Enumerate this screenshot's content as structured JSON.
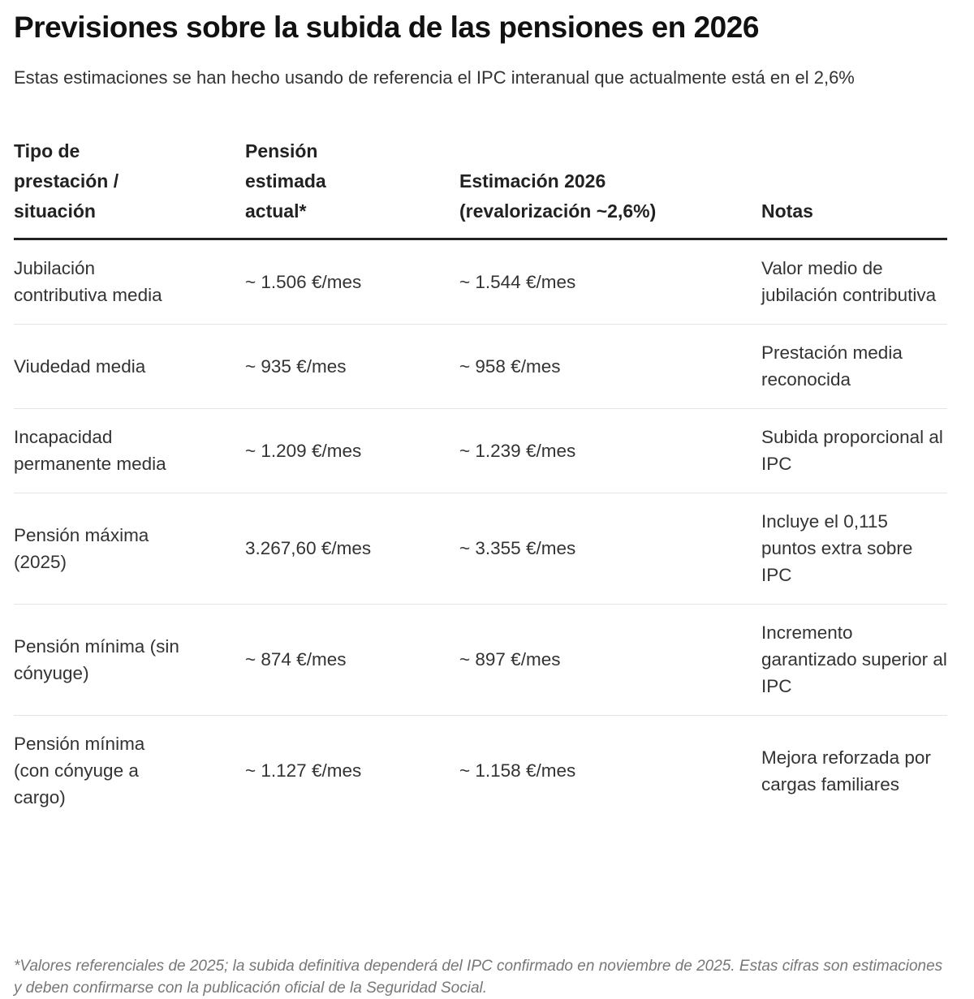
{
  "header": {
    "title": "Previsiones sobre la subida de las pensiones en 2026",
    "subtitle": "Estas estimaciones se han hecho usando de referencia el IPC interanual que actualmente está en el 2,6%"
  },
  "table": {
    "columns": [
      "Tipo de prestación / situación",
      "Pensión estimada actual*",
      "Estimación 2026 (revalorización ~2,6%)",
      "Notas"
    ],
    "rows": [
      [
        "Jubilación contributiva media",
        "~ 1.506 €/mes",
        "~ 1.544 €/mes",
        "Valor medio de jubilación contributiva"
      ],
      [
        "Viudedad media",
        "~ 935 €/mes",
        "~ 958 €/mes",
        "Prestación media reconocida"
      ],
      [
        "Incapacidad permanente media",
        "~ 1.209 €/mes",
        "~ 1.239 €/mes",
        "Subida proporcional al IPC"
      ],
      [
        "Pensión máxima (2025)",
        "3.267,60 €/mes",
        "~ 3.355 €/mes",
        "Incluye el 0,115 puntos extra sobre IPC"
      ],
      [
        "Pensión mínima (sin cónyuge)",
        "~ 874 €/mes",
        "~ 897 €/mes",
        "Incremento garantizado superior al IPC"
      ],
      [
        "Pensión mínima (con cónyuge a cargo)",
        "~ 1.127 €/mes",
        "~ 1.158 €/mes",
        "Mejora reforzada por cargas familiares"
      ]
    ]
  },
  "footer": {
    "note": "*Valores referenciales de 2025; la subida definitiva dependerá del IPC confirmado en noviembre de 2025. Estas cifras son estimaciones y deben confirmarse con la publicación oficial de la Seguridad Social."
  }
}
